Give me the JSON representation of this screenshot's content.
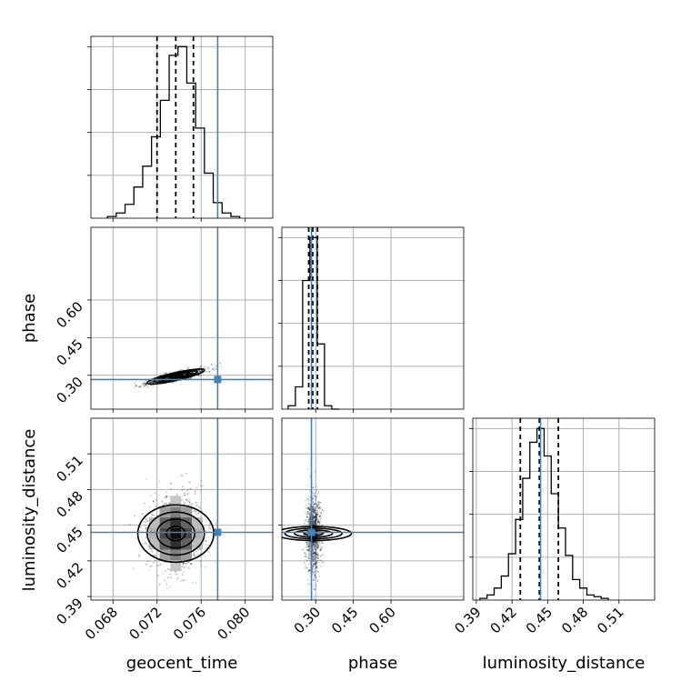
{
  "chart_data": {
    "type": "corner",
    "parameters": [
      "geocent_time",
      "phase",
      "luminosity_distance"
    ],
    "axis_labels": {
      "geocent_time": "geocent_time",
      "phase": "phase",
      "luminosity_distance": "luminosity_distance"
    },
    "ranges": {
      "geocent_time": [
        0.066,
        0.0825
      ],
      "phase": [
        0.165,
        0.89
      ],
      "luminosity_distance": [
        0.387,
        0.54
      ]
    },
    "ticks": {
      "geocent_time": {
        "values": [
          0.068,
          0.072,
          0.076,
          0.08
        ],
        "labels": [
          "0.068",
          "0.072",
          "0.076",
          "0.080"
        ]
      },
      "phase": {
        "values": [
          0.3,
          0.45,
          0.6
        ],
        "labels": [
          "0.30",
          "0.45",
          "0.60"
        ]
      },
      "luminosity_distance": {
        "values": [
          0.39,
          0.42,
          0.45,
          0.48,
          0.51
        ],
        "labels": [
          "0.39",
          "0.42",
          "0.45",
          "0.48",
          "0.51"
        ]
      }
    },
    "truths": {
      "geocent_time": 0.0775,
      "phase": 0.283,
      "luminosity_distance": 0.444
    },
    "quantiles": {
      "geocent_time": [
        0.072,
        0.0737,
        0.0753
      ],
      "phase": [
        0.272,
        0.288,
        0.307
      ],
      "luminosity_distance": [
        0.427,
        0.443,
        0.459
      ]
    },
    "histograms": {
      "geocent_time": {
        "edges": [
          0.0675,
          0.0683,
          0.0691,
          0.0699,
          0.0707,
          0.0715,
          0.0723,
          0.0731,
          0.0739,
          0.0747,
          0.0755,
          0.0763,
          0.0771,
          0.0779,
          0.0787,
          0.0795
        ],
        "counts": [
          1,
          3,
          8,
          18,
          30,
          47,
          68,
          94,
          99,
          78,
          52,
          26,
          9,
          3,
          1
        ]
      },
      "phase": {
        "edges": [
          0.19,
          0.219,
          0.248,
          0.277,
          0.306,
          0.335,
          0.364,
          0.393
        ],
        "counts": [
          2,
          13,
          75,
          100,
          38,
          2,
          0
        ]
      },
      "luminosity_distance": {
        "edges": [
          0.393,
          0.399,
          0.405,
          0.411,
          0.417,
          0.423,
          0.429,
          0.435,
          0.441,
          0.447,
          0.453,
          0.459,
          0.465,
          0.471,
          0.477,
          0.483,
          0.489,
          0.495,
          0.501
        ],
        "counts": [
          1,
          3,
          7,
          14,
          27,
          47,
          71,
          92,
          100,
          84,
          62,
          42,
          26,
          12,
          7,
          3,
          2,
          1
        ]
      }
    },
    "pairs": [
      {
        "x": "geocent_time",
        "y": "phase",
        "center": [
          0.0737,
          0.295
        ],
        "sd": [
          0.0013,
          0.015
        ],
        "corr": 0.85
      },
      {
        "x": "geocent_time",
        "y": "luminosity_distance",
        "center": [
          0.0737,
          0.443
        ],
        "sd": [
          0.0013,
          0.016
        ],
        "corr": 0.0
      },
      {
        "x": "phase",
        "y": "luminosity_distance",
        "center": [
          0.291,
          0.443
        ],
        "sd": [
          0.014,
          0.016
        ],
        "corr": 0.0
      }
    ],
    "contour_levels_sigma": [
      0.5,
      1.0,
      1.5,
      2.0
    ],
    "colors": {
      "truth": "#4682b4",
      "hist": "#000000",
      "density": "#000000"
    }
  }
}
